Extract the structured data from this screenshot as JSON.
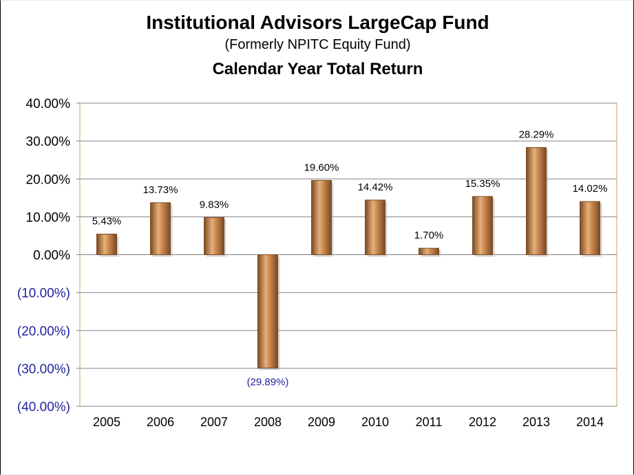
{
  "header": {
    "title": "Institutional Advisors LargeCap Fund",
    "subtitle": "(Formerly NPITC Equity Fund)",
    "chart_title": "Calendar Year Total Return"
  },
  "colors": {
    "bar_light": "#e8b07a",
    "bar_mid": "#c98850",
    "bar_dark": "#7a4a22",
    "positive_label": "#000000",
    "negative_label": "#1f1fa0",
    "grid": "#808080",
    "plot_border": "#c8a060"
  },
  "chart_data": {
    "type": "bar",
    "categories": [
      "2005",
      "2006",
      "2007",
      "2008",
      "2009",
      "2010",
      "2011",
      "2012",
      "2013",
      "2014"
    ],
    "values": [
      5.43,
      13.73,
      9.83,
      -29.89,
      19.6,
      14.42,
      1.7,
      15.35,
      28.29,
      14.02
    ],
    "data_labels": [
      "5.43%",
      "13.73%",
      "9.83%",
      "(29.89%)",
      "19.60%",
      "14.42%",
      "1.70%",
      "15.35%",
      "28.29%",
      "14.02%"
    ],
    "ylim": [
      -40,
      40
    ],
    "yticks": [
      40,
      30,
      20,
      10,
      0,
      -10,
      -20,
      -30,
      -40
    ],
    "ytick_labels": [
      "40.00%",
      "30.00%",
      "20.00%",
      "10.00%",
      "0.00%",
      "(10.00%)",
      "(20.00%)",
      "(30.00%)",
      "(40.00%)"
    ],
    "grid": true,
    "legend": "none",
    "title": "Calendar Year Total Return",
    "xlabel": "",
    "ylabel": ""
  }
}
